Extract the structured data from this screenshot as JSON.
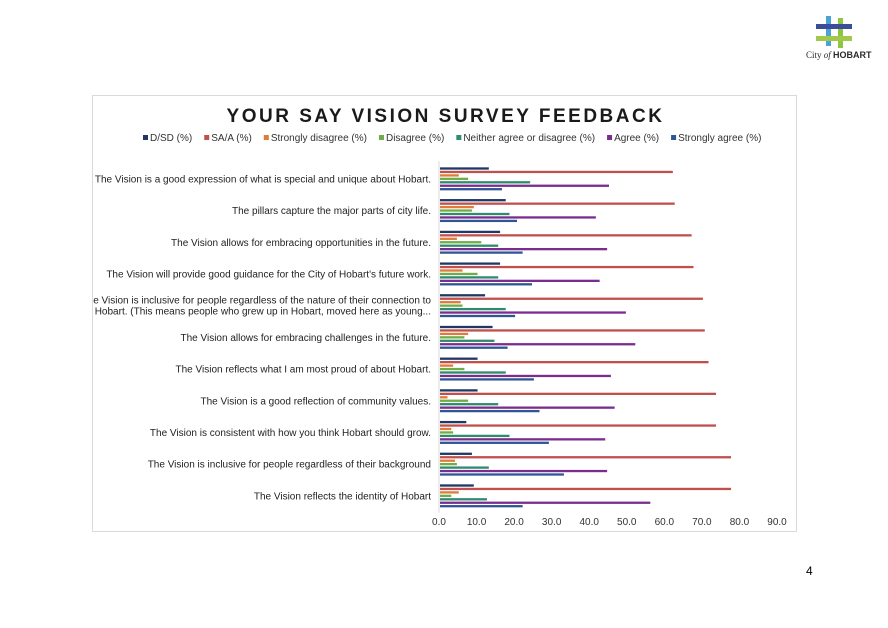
{
  "logo": {
    "icon": "city-of-hobart-crosshatch-logo",
    "text_prefix": "City",
    "text_of": "of",
    "text_name": "HOBART",
    "colors": [
      "#4aa3d6",
      "#8dc63f",
      "#3b4c9b",
      "#a3c94a"
    ]
  },
  "page": {
    "number": "4"
  },
  "chart_data": {
    "type": "bar",
    "orientation": "horizontal",
    "title": "YOUR SAY VISION SURVEY FEEDBACK",
    "xlabel": "",
    "ylabel": "",
    "xlim": [
      0,
      90
    ],
    "ticks": [
      "0.0",
      "10.0",
      "20.0",
      "30.0",
      "40.0",
      "50.0",
      "60.0",
      "70.0",
      "80.0",
      "90.0"
    ],
    "legend_position": "top",
    "grid": false,
    "categories": [
      [
        "The Vision is a good expression of what is special and unique about Hobart."
      ],
      [
        "The pillars capture the major parts of city life."
      ],
      [
        "The Vision allows for embracing opportunities in the future."
      ],
      [
        "The Vision will provide good guidance for the City of Hobart's future work."
      ],
      [
        "The Vision is inclusive for people regardless of the nature of their connection to",
        "Hobart. (This means people who grew up in Hobart, moved here as young..."
      ],
      [
        "The Vision allows for embracing challenges in the future."
      ],
      [
        "The Vision reflects what I am most proud of about Hobart."
      ],
      [
        "The Vision is a good reflection of community values."
      ],
      [
        "The Vision is consistent with how you think Hobart should grow."
      ],
      [
        "The Vision is inclusive for people regardless of their background"
      ],
      [
        "The Vision reflects the identity of Hobart"
      ]
    ],
    "series": [
      {
        "name": "D/SD (%)",
        "color": "#1f3864",
        "values": [
          13.0,
          17.5,
          16.0,
          16.0,
          12.0,
          14.0,
          10.0,
          10.0,
          7.0,
          8.5,
          9.0
        ]
      },
      {
        "name": "SA/A (%)",
        "color": "#c0504d",
        "values": [
          62.0,
          62.5,
          67.0,
          67.5,
          70.0,
          70.5,
          71.5,
          73.5,
          73.5,
          77.5,
          77.5
        ]
      },
      {
        "name": "Strongly disagree (%)",
        "color": "#e07b39",
        "values": [
          5.0,
          9.0,
          4.5,
          6.0,
          5.5,
          7.5,
          3.5,
          2.0,
          3.0,
          4.0,
          5.0
        ]
      },
      {
        "name": "Disagree (%)",
        "color": "#70ad47",
        "values": [
          7.5,
          8.5,
          11.0,
          10.0,
          6.0,
          6.5,
          6.5,
          7.5,
          3.5,
          4.5,
          3.0
        ]
      },
      {
        "name": "Neither agree or disagree (%)",
        "color": "#2e8b6e",
        "values": [
          24.0,
          18.5,
          15.5,
          15.5,
          17.5,
          14.5,
          17.5,
          15.5,
          18.5,
          13.0,
          12.5
        ]
      },
      {
        "name": "Agree (%)",
        "color": "#7b2d8e",
        "values": [
          45.0,
          41.5,
          44.5,
          42.5,
          49.5,
          52.0,
          45.5,
          46.5,
          44.0,
          44.5,
          56.0
        ]
      },
      {
        "name": "Strongly agree (%)",
        "color": "#2f5597",
        "values": [
          16.5,
          20.5,
          22.0,
          24.5,
          20.0,
          18.0,
          25.0,
          26.5,
          29.0,
          33.0,
          22.0
        ]
      }
    ]
  }
}
